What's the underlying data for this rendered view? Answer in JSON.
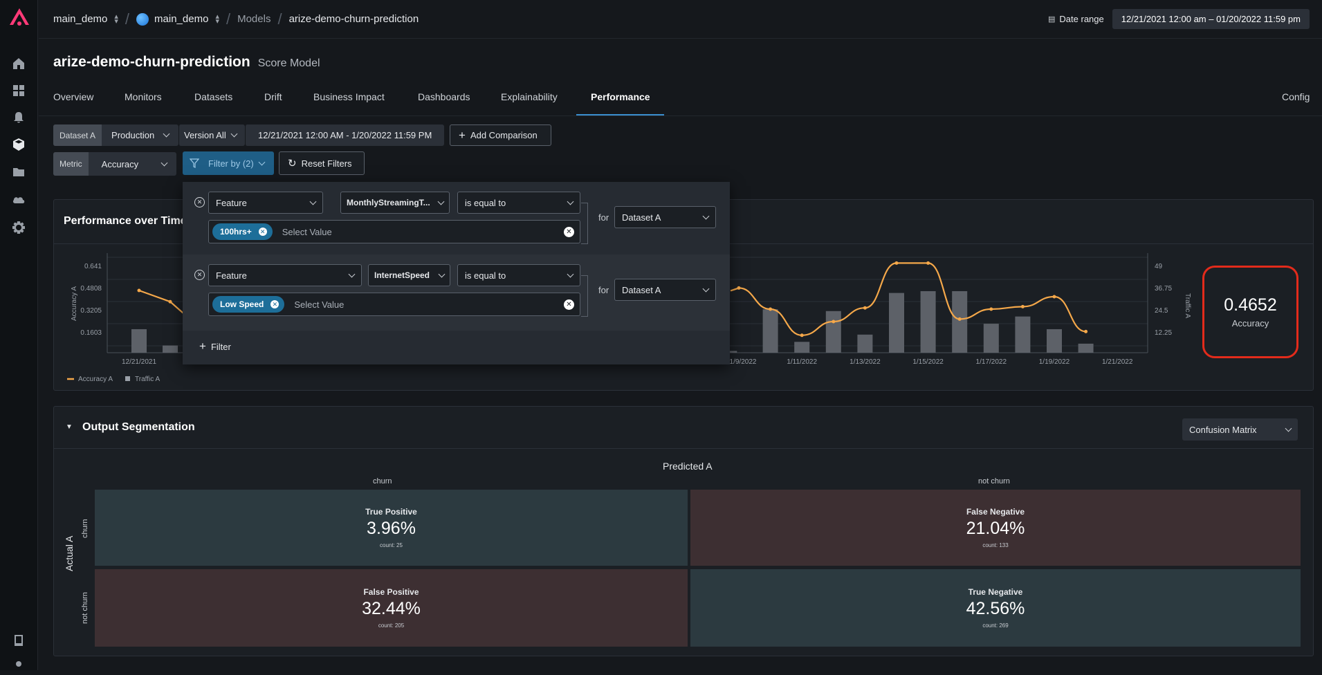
{
  "topbar": {
    "org": "main_demo",
    "space": "main_demo",
    "models_crumb": "Models",
    "model_crumb": "arize-demo-churn-prediction",
    "date_range_label": "Date range",
    "date_range_value": "12/21/2021 12:00 am – 01/20/2022 11:59 pm"
  },
  "header": {
    "model_name": "arize-demo-churn-prediction",
    "model_type": "Score Model"
  },
  "tabs": [
    "Overview",
    "Monitors",
    "Datasets",
    "Drift",
    "Business Impact",
    "Dashboards",
    "Explainability",
    "Performance",
    "Config"
  ],
  "active_tab": "Performance",
  "controls": {
    "dataset_tag": "Dataset A",
    "environment": "Production",
    "version": "Version All",
    "dates": "12/21/2021 12:00 AM - 1/20/2022 11:59 PM",
    "add_comparison": "Add Comparison",
    "metric_tag": "Metric",
    "metric": "Accuracy",
    "filter_by": "Filter by (2)",
    "reset_filters": "Reset Filters"
  },
  "filters": [
    {
      "type": "Feature",
      "feature": "MonthlyStreamingT...",
      "operator": "is equal to",
      "value_chip": "100hrs+",
      "placeholder": "Select Value",
      "for_label": "for",
      "dataset": "Dataset A"
    },
    {
      "type": "Feature",
      "feature": "InternetSpeed",
      "operator": "is equal to",
      "value_chip": "Low Speed",
      "placeholder": "Select Value",
      "for_label": "for",
      "dataset": "Dataset A"
    }
  ],
  "add_filter_label": "Filter",
  "performance": {
    "title": "Performance over Time",
    "kpi_value": "0.4652",
    "kpi_label": "Accuracy",
    "legend": [
      "Accuracy A",
      "Traffic A"
    ]
  },
  "chart_data": {
    "type": "line",
    "ylabel": "Accuracy A",
    "y2label": "Traffic A",
    "y_ticks": [
      "0.641",
      "0.4808",
      "0.3205",
      "0.1603"
    ],
    "y2_ticks": [
      "49",
      "36.75",
      "24.5",
      "12.25"
    ],
    "x_ticks_left": [
      "12/21/2021"
    ],
    "x_ticks_right": [
      "1/9/2022",
      "1/11/2022",
      "1/13/2022",
      "1/15/2022",
      "1/17/2022",
      "1/19/2022",
      "1/21/2022"
    ],
    "ylim": [
      0,
      0.8
    ],
    "y2lim": [
      0,
      55
    ],
    "accuracy_left": [
      {
        "x": 0,
        "y": 0.5
      },
      {
        "x": 1,
        "y": 0.41
      }
    ],
    "traffic_left": [
      {
        "x": 0,
        "y": 13
      },
      {
        "x": 1,
        "y": 4
      }
    ],
    "accuracy_right": [
      {
        "x": 0,
        "y": 0.52
      },
      {
        "x": 1,
        "y": 0.35
      },
      {
        "x": 2,
        "y": 0.14
      },
      {
        "x": 3,
        "y": 0.25
      },
      {
        "x": 4,
        "y": 0.36
      },
      {
        "x": 5,
        "y": 0.72
      },
      {
        "x": 6,
        "y": 0.72
      },
      {
        "x": 7,
        "y": 0.27
      },
      {
        "x": 8,
        "y": 0.35
      },
      {
        "x": 9,
        "y": 0.37
      },
      {
        "x": 10,
        "y": 0.45
      },
      {
        "x": 11,
        "y": 0.17
      }
    ],
    "traffic_right": [
      {
        "x": -0.3,
        "y": 1
      },
      {
        "x": 1,
        "y": 24
      },
      {
        "x": 2,
        "y": 6
      },
      {
        "x": 3,
        "y": 23
      },
      {
        "x": 4,
        "y": 10
      },
      {
        "x": 5,
        "y": 33
      },
      {
        "x": 6,
        "y": 34
      },
      {
        "x": 7,
        "y": 34
      },
      {
        "x": 8,
        "y": 16
      },
      {
        "x": 9,
        "y": 20
      },
      {
        "x": 10,
        "y": 13
      },
      {
        "x": 11,
        "y": 5
      }
    ]
  },
  "segmentation": {
    "title": "Output Segmentation",
    "view": "Confusion Matrix",
    "predicted_label": "Predicted A",
    "actual_label": "Actual A",
    "col_labels": [
      "churn",
      "not churn"
    ],
    "row_labels": [
      "churn",
      "not churn"
    ],
    "cells": [
      {
        "name": "True Positive",
        "pct": "3.96%",
        "count": "count: 25"
      },
      {
        "name": "False Negative",
        "pct": "21.04%",
        "count": "count: 133"
      },
      {
        "name": "False Positive",
        "pct": "32.44%",
        "count": "count: 205"
      },
      {
        "name": "True Negative",
        "pct": "42.56%",
        "count": "count: 269"
      }
    ]
  },
  "colors": {
    "accuracy_line": "#f5a84a",
    "traffic_bar": "#5d6168",
    "accent": "#1f5e86",
    "kpi_highlight": "#e32b1b"
  }
}
